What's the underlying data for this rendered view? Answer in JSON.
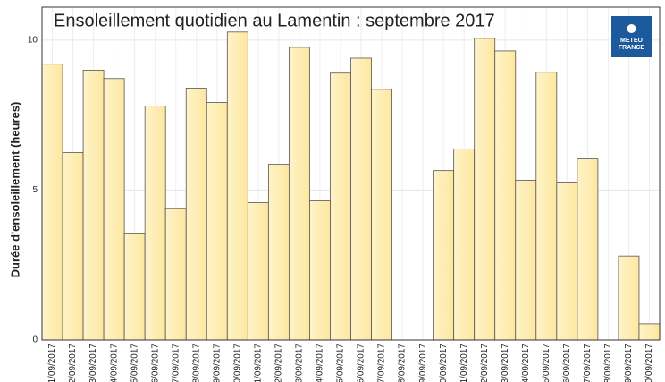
{
  "chart_data": {
    "type": "bar",
    "title": "Ensoleillement quotidien au Lamentin : septembre 2017",
    "y_label": "Durée d'ensoleillement (heures)",
    "logo": [
      "METEO",
      "FRANCE"
    ],
    "categories": [
      "1/09/2017",
      "2/09/2017",
      "3/09/2017",
      "4/09/2017",
      "5/09/2017",
      "6/09/2017",
      "7/09/2017",
      "8/09/2017",
      "9/09/2017",
      "0/09/2017",
      "1/09/2017",
      "2/09/2017",
      "3/09/2017",
      "4/09/2017",
      "5/09/2017",
      "6/09/2017",
      "7/09/2017",
      "8/09/2017",
      "9/09/2017",
      "0/09/2017",
      "1/09/2017",
      "2/09/2017",
      "3/09/2017",
      "4/09/2017",
      "5/09/2017",
      "6/09/2017",
      "7/09/2017",
      "8/09/2017",
      "9/09/2017",
      "0/09/2017"
    ],
    "values": [
      9.2,
      6.25,
      9.0,
      8.72,
      3.54,
      7.8,
      4.38,
      8.4,
      7.92,
      10.27,
      4.58,
      5.86,
      9.76,
      4.64,
      8.9,
      9.4,
      8.36,
      null,
      null,
      5.65,
      6.37,
      10.06,
      9.64,
      5.33,
      8.93,
      5.27,
      6.04,
      null,
      2.8,
      0.54
    ],
    "color": "#fde9a8",
    "ylim": [
      0,
      11.1
    ],
    "yticks": [
      0,
      5,
      10
    ],
    "grid": true
  }
}
